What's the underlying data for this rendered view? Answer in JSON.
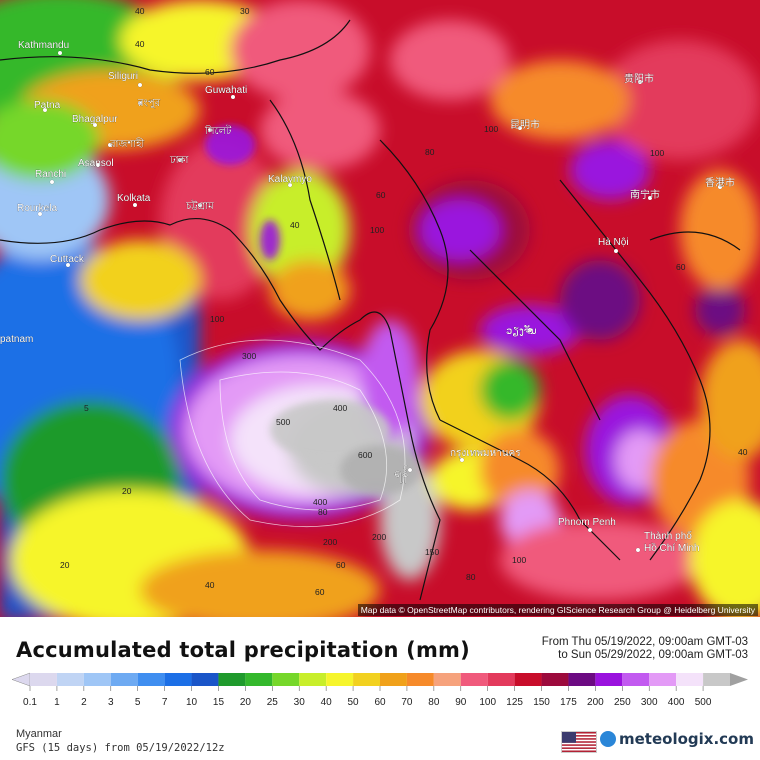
{
  "map": {
    "cities": [
      {
        "id": "kathmandu",
        "label": "Kathmandu"
      },
      {
        "id": "siliguri",
        "label": "Siliguri"
      },
      {
        "id": "guwahati",
        "label": "Guwahati"
      },
      {
        "id": "patna",
        "label": "Patna"
      },
      {
        "id": "bhagalpur",
        "label": "Bhagalpur"
      },
      {
        "id": "asansol",
        "label": "Asansol"
      },
      {
        "id": "ranchi",
        "label": "Ranchi"
      },
      {
        "id": "kalaymyo",
        "label": "Kalaymyo"
      },
      {
        "id": "kolkata",
        "label": "Kolkata"
      },
      {
        "id": "rourkela",
        "label": "Rourkela"
      },
      {
        "id": "cuttack",
        "label": "Cuttack"
      },
      {
        "id": "patnam",
        "label": "patnam"
      },
      {
        "id": "hanoi",
        "label": "Hà Nội"
      },
      {
        "id": "phnompenh",
        "label": "Phnom Penh"
      },
      {
        "id": "hcm1",
        "label": "Thành phố"
      },
      {
        "id": "hcm2",
        "label": "Hồ Chí Minh"
      },
      {
        "id": "kunming",
        "label": "昆明市"
      },
      {
        "id": "guiyang",
        "label": "贵阳市"
      },
      {
        "id": "nanning",
        "label": "南宁市"
      },
      {
        "id": "hongkong",
        "label": "香港市"
      },
      {
        "id": "dhaka",
        "label": "ঢাকা"
      },
      {
        "id": "sylhet",
        "label": "সিলেট"
      },
      {
        "id": "rangpur",
        "label": "রংপুর"
      },
      {
        "id": "rajshahi",
        "label": "রাজশাহী"
      },
      {
        "id": "chittagong",
        "label": "চট্টগ্রাম"
      },
      {
        "id": "vientiane",
        "label": "ວຽງຈັນ"
      },
      {
        "id": "bangkok",
        "label": "กรุงเทพมหานคร"
      },
      {
        "id": "yangon",
        "label": "ရန်"
      }
    ],
    "contours": [
      {
        "id": "c40a",
        "label": "40"
      },
      {
        "id": "c40b",
        "label": "40"
      },
      {
        "id": "c40c",
        "label": "40"
      },
      {
        "id": "c60a",
        "label": "60"
      },
      {
        "id": "c60b",
        "label": "60"
      },
      {
        "id": "c60c",
        "label": "60"
      },
      {
        "id": "c60d",
        "label": "60"
      },
      {
        "id": "c80a",
        "label": "80"
      },
      {
        "id": "c80b",
        "label": "80"
      },
      {
        "id": "c100a",
        "label": "100"
      },
      {
        "id": "c100b",
        "label": "100"
      },
      {
        "id": "c100c",
        "label": "100"
      },
      {
        "id": "c100d",
        "label": "100"
      },
      {
        "id": "c100e",
        "label": "100"
      },
      {
        "id": "c200a",
        "label": "200"
      },
      {
        "id": "c200b",
        "label": "200"
      },
      {
        "id": "c300a",
        "label": "300"
      },
      {
        "id": "c400a",
        "label": "400"
      },
      {
        "id": "c400b",
        "label": "400"
      },
      {
        "id": "c500a",
        "label": "500"
      },
      {
        "id": "c600a",
        "label": "600"
      },
      {
        "id": "c150a",
        "label": "150"
      },
      {
        "id": "c80c",
        "label": "80"
      },
      {
        "id": "c30a",
        "label": "30"
      },
      {
        "id": "c20a",
        "label": "20"
      },
      {
        "id": "c20b",
        "label": "20"
      },
      {
        "id": "c5a",
        "label": "5"
      },
      {
        "id": "c40d",
        "label": "40"
      },
      {
        "id": "c40e",
        "label": "40"
      },
      {
        "id": "c60e",
        "label": "60"
      }
    ],
    "attribution": "Map data © OpenStreetMap contributors, rendering GIScience Research Group @ Heidelberg University"
  },
  "header": {
    "title": "Accumulated total precipitation (mm)",
    "from": "From Thu 05/19/2022, 09:00am GMT-03",
    "to": "to Sun 05/29/2022, 09:00am GMT-03"
  },
  "legend": {
    "steps": [
      {
        "label": "0.1",
        "color": "#dcd8ee"
      },
      {
        "label": "1",
        "color": "#c0d4f4"
      },
      {
        "label": "2",
        "color": "#9fc6f6"
      },
      {
        "label": "3",
        "color": "#6eaaf2"
      },
      {
        "label": "5",
        "color": "#3f8ef0"
      },
      {
        "label": "7",
        "color": "#1c6fe6"
      },
      {
        "label": "10",
        "color": "#1a55c8"
      },
      {
        "label": "15",
        "color": "#1f9a2c"
      },
      {
        "label": "20",
        "color": "#34b82c"
      },
      {
        "label": "25",
        "color": "#76d72a"
      },
      {
        "label": "30",
        "color": "#c8ee2a"
      },
      {
        "label": "40",
        "color": "#f6f52c"
      },
      {
        "label": "50",
        "color": "#f2d11f"
      },
      {
        "label": "60",
        "color": "#f0a11a"
      },
      {
        "label": "70",
        "color": "#f68a2a"
      },
      {
        "label": "80",
        "color": "#f6a27c"
      },
      {
        "label": "90",
        "color": "#f05a7c"
      },
      {
        "label": "100",
        "color": "#e33a5c"
      },
      {
        "label": "125",
        "color": "#c80d2a"
      },
      {
        "label": "150",
        "color": "#9c0a3c"
      },
      {
        "label": "175",
        "color": "#6c0a82"
      },
      {
        "label": "200",
        "color": "#9a12de"
      },
      {
        "label": "250",
        "color": "#c25af0"
      },
      {
        "label": "300",
        "color": "#e39af6"
      },
      {
        "label": "400",
        "color": "#f4e2fa"
      },
      {
        "label": "500",
        "color": "#c8c8c8"
      }
    ]
  },
  "footer": {
    "location": "Myanmar",
    "model": "GFS (15 days) from 05/19/2022/12z",
    "brand": "meteologix.com"
  }
}
